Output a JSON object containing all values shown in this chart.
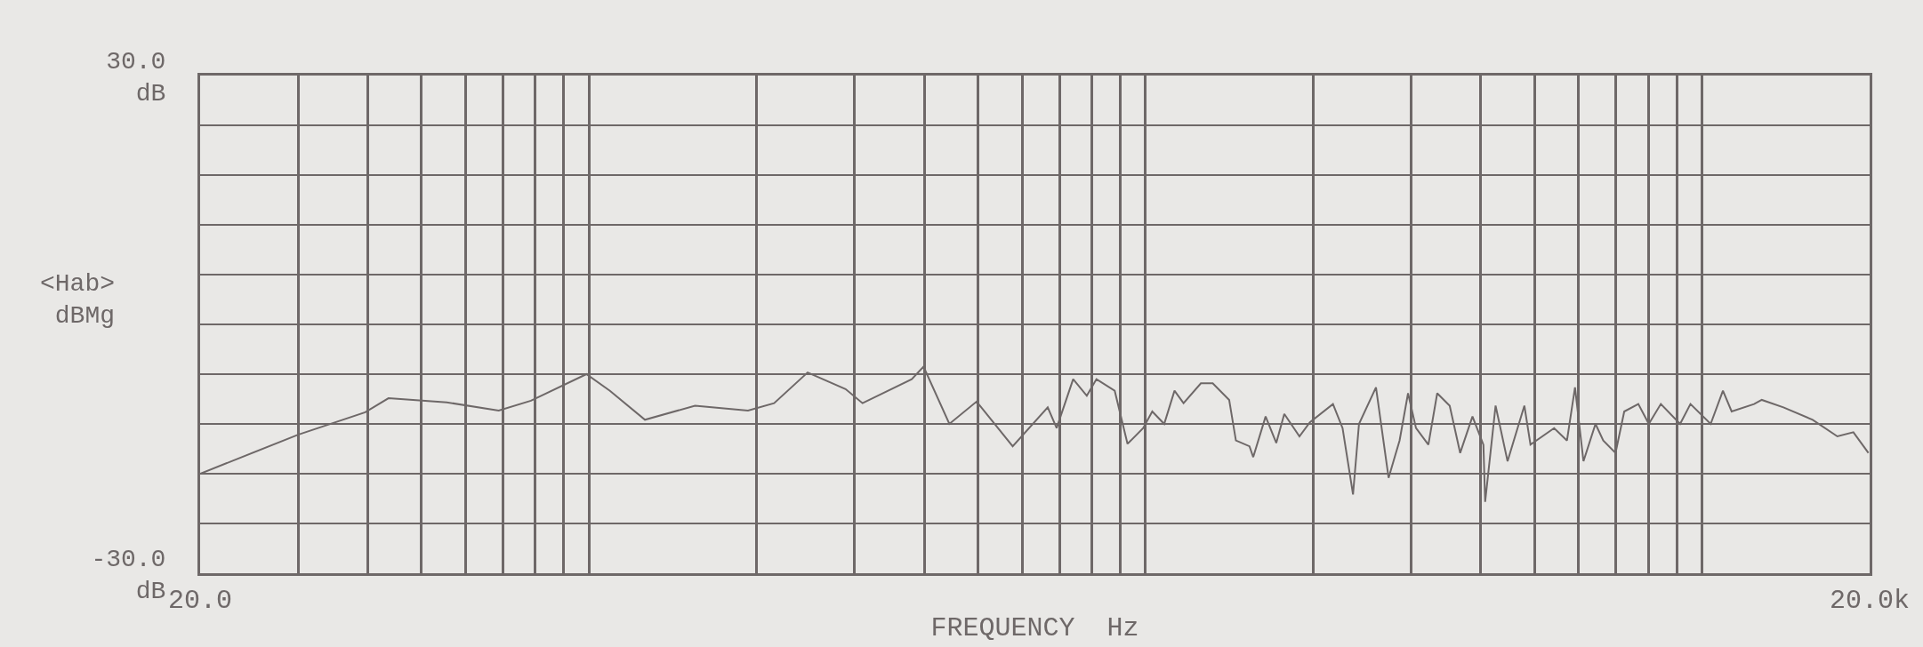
{
  "chart_data": {
    "type": "line",
    "xlabel": "FREQUENCY  Hz",
    "ylabel": "<Hab>\ndBMg",
    "log": "x",
    "grid": true,
    "legend": false,
    "marker": "none",
    "line_style": "solid",
    "xlim": [
      20,
      20000
    ],
    "ylim": [
      -30,
      30
    ],
    "xticks": [
      {
        "value": 20,
        "label": "20.0"
      },
      {
        "value": 30,
        "label": null
      },
      {
        "value": 40,
        "label": null
      },
      {
        "value": 50,
        "label": null
      },
      {
        "value": 60,
        "label": null
      },
      {
        "value": 70,
        "label": null
      },
      {
        "value": 80,
        "label": null
      },
      {
        "value": 90,
        "label": null
      },
      {
        "value": 100,
        "label": null
      },
      {
        "value": 200,
        "label": null
      },
      {
        "value": 300,
        "label": null
      },
      {
        "value": 400,
        "label": null
      },
      {
        "value": 500,
        "label": null
      },
      {
        "value": 600,
        "label": null
      },
      {
        "value": 700,
        "label": null
      },
      {
        "value": 800,
        "label": null
      },
      {
        "value": 900,
        "label": null
      },
      {
        "value": 1000,
        "label": null
      },
      {
        "value": 2000,
        "label": null
      },
      {
        "value": 3000,
        "label": null
      },
      {
        "value": 4000,
        "label": null
      },
      {
        "value": 5000,
        "label": null
      },
      {
        "value": 6000,
        "label": null
      },
      {
        "value": 7000,
        "label": null
      },
      {
        "value": 8000,
        "label": null
      },
      {
        "value": 9000,
        "label": null
      },
      {
        "value": 10000,
        "label": null
      },
      {
        "value": 20000,
        "label": "20.0k"
      }
    ],
    "yticks": [
      {
        "value": -30,
        "label": "-30.0\ndB"
      },
      {
        "value": -24,
        "label": null
      },
      {
        "value": -18,
        "label": null
      },
      {
        "value": -12,
        "label": null
      },
      {
        "value": -6,
        "label": null
      },
      {
        "value": 0,
        "label": null
      },
      {
        "value": 6,
        "label": null
      },
      {
        "value": 12,
        "label": null
      },
      {
        "value": 18,
        "label": null
      },
      {
        "value": 24,
        "label": null
      },
      {
        "value": 30,
        "label": "30.0\ndB"
      }
    ],
    "series": [
      {
        "color": "#6e6868",
        "x": [
          20,
          30,
          39.6,
          43.6,
          55.5,
          68.8,
          78.6,
          98.9,
          109,
          126,
          155,
          193,
          215,
          247,
          289,
          310,
          380,
          399,
          444,
          497,
          577,
          667,
          692,
          741,
          784,
          816,
          880,
          928,
          990,
          1028,
          1080,
          1127,
          1170,
          1257,
          1320,
          1413,
          1453,
          1537,
          1561,
          1643,
          1717,
          1775,
          1890,
          1973,
          2171,
          2259,
          2359,
          2418,
          2594,
          2733,
          2860,
          2962,
          3061,
          3222,
          3342,
          3519,
          3675,
          3867,
          4046,
          4075,
          4255,
          4471,
          4793,
          4916,
          5421,
          5717,
          5910,
          6121,
          6433,
          6643,
          6989,
          7246,
          7680,
          8021,
          8430,
          9130,
          9530,
          10360,
          10900,
          11300,
          12400,
          12800,
          14000,
          15800,
          17500,
          18700,
          19900
        ],
        "values": [
          -18,
          -13.3,
          -10.6,
          -8.9,
          -9.4,
          -10.4,
          -9.2,
          -6,
          -8,
          -11.5,
          -9.8,
          -10.4,
          -9.5,
          -5.8,
          -7.8,
          -9.5,
          -6.6,
          -5.1,
          -12,
          -9.3,
          -14.7,
          -10,
          -12.5,
          -6.6,
          -8.6,
          -6.6,
          -8,
          -14.4,
          -12.5,
          -10.5,
          -12,
          -8,
          -9.5,
          -7.1,
          -7.1,
          -9.1,
          -14,
          -14.7,
          -16,
          -11.1,
          -14.3,
          -10.8,
          -13.5,
          -11.8,
          -9.6,
          -12.5,
          -20.5,
          -12,
          -7.6,
          -18.5,
          -14,
          -8.3,
          -12.5,
          -14.5,
          -8.3,
          -9.8,
          -15.5,
          -11.1,
          -14.5,
          -21.4,
          -9.8,
          -16.5,
          -9.8,
          -14.5,
          -12.5,
          -14,
          -7.6,
          -16.5,
          -12,
          -14,
          -15.5,
          -10.5,
          -9.6,
          -12,
          -9.6,
          -12,
          -9.6,
          -12,
          -8,
          -10.5,
          -9.6,
          -9.1,
          -10,
          -11.5,
          -13.5,
          -13,
          -15.5
        ]
      }
    ]
  }
}
